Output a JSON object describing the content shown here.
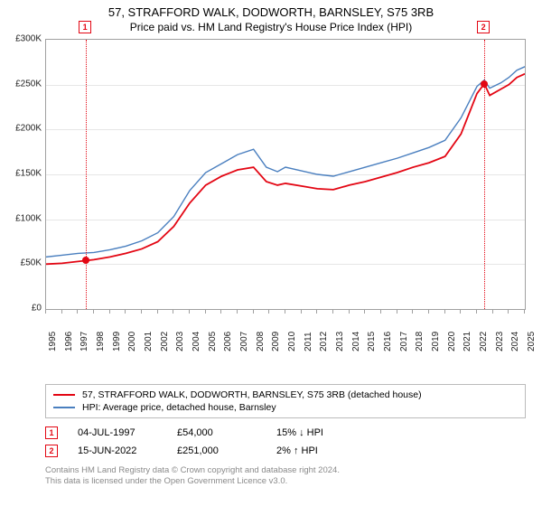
{
  "title": "57, STRAFFORD WALK, DODWORTH, BARNSLEY, S75 3RB",
  "subtitle": "Price paid vs. HM Land Registry's House Price Index (HPI)",
  "chart": {
    "type": "line",
    "background_color": "#ffffff",
    "grid_color": "#e6e6e6",
    "border_color": "#a0a0a0",
    "ylabel_prefix": "£",
    "ylim": [
      0,
      300000
    ],
    "ytick_step": 50000,
    "yticks": [
      "£0",
      "£50K",
      "£100K",
      "£150K",
      "£200K",
      "£250K",
      "£300K"
    ],
    "x_years": [
      1995,
      1996,
      1997,
      1998,
      1999,
      2000,
      2001,
      2002,
      2003,
      2004,
      2005,
      2006,
      2007,
      2008,
      2009,
      2010,
      2011,
      2012,
      2013,
      2014,
      2015,
      2016,
      2017,
      2018,
      2019,
      2020,
      2021,
      2022,
      2023,
      2024,
      2025
    ],
    "label_fontsize": 10,
    "series": [
      {
        "name": "price_paid",
        "label": "57, STRAFFORD WALK, DODWORTH, BARNSLEY, S75 3RB (detached house)",
        "color": "#e30613",
        "line_width": 1.8,
        "data": [
          [
            1995.0,
            50000
          ],
          [
            1996.0,
            51000
          ],
          [
            1997.5,
            54000
          ],
          [
            1998.0,
            55000
          ],
          [
            1999.0,
            58000
          ],
          [
            2000.0,
            62000
          ],
          [
            2001.0,
            67000
          ],
          [
            2002.0,
            75000
          ],
          [
            2003.0,
            92000
          ],
          [
            2004.0,
            118000
          ],
          [
            2005.0,
            138000
          ],
          [
            2006.0,
            148000
          ],
          [
            2007.0,
            155000
          ],
          [
            2008.0,
            158000
          ],
          [
            2008.8,
            142000
          ],
          [
            2009.5,
            138000
          ],
          [
            2010.0,
            140000
          ],
          [
            2011.0,
            137000
          ],
          [
            2012.0,
            134000
          ],
          [
            2013.0,
            133000
          ],
          [
            2014.0,
            138000
          ],
          [
            2015.0,
            142000
          ],
          [
            2016.0,
            147000
          ],
          [
            2017.0,
            152000
          ],
          [
            2018.0,
            158000
          ],
          [
            2019.0,
            163000
          ],
          [
            2020.0,
            170000
          ],
          [
            2021.0,
            195000
          ],
          [
            2022.0,
            240000
          ],
          [
            2022.46,
            251000
          ],
          [
            2022.8,
            238000
          ],
          [
            2023.5,
            245000
          ],
          [
            2024.0,
            250000
          ],
          [
            2024.5,
            258000
          ],
          [
            2025.0,
            262000
          ]
        ]
      },
      {
        "name": "hpi",
        "label": "HPI: Average price, detached house, Barnsley",
        "color": "#4a7fbf",
        "line_width": 1.4,
        "data": [
          [
            1995.0,
            58000
          ],
          [
            1996.0,
            60000
          ],
          [
            1997.0,
            62000
          ],
          [
            1998.0,
            63000
          ],
          [
            1999.0,
            66000
          ],
          [
            2000.0,
            70000
          ],
          [
            2001.0,
            76000
          ],
          [
            2002.0,
            85000
          ],
          [
            2003.0,
            103000
          ],
          [
            2004.0,
            132000
          ],
          [
            2005.0,
            152000
          ],
          [
            2006.0,
            162000
          ],
          [
            2007.0,
            172000
          ],
          [
            2008.0,
            178000
          ],
          [
            2008.8,
            158000
          ],
          [
            2009.5,
            153000
          ],
          [
            2010.0,
            158000
          ],
          [
            2011.0,
            154000
          ],
          [
            2012.0,
            150000
          ],
          [
            2013.0,
            148000
          ],
          [
            2014.0,
            153000
          ],
          [
            2015.0,
            158000
          ],
          [
            2016.0,
            163000
          ],
          [
            2017.0,
            168000
          ],
          [
            2018.0,
            174000
          ],
          [
            2019.0,
            180000
          ],
          [
            2020.0,
            188000
          ],
          [
            2021.0,
            213000
          ],
          [
            2022.0,
            248000
          ],
          [
            2022.46,
            255000
          ],
          [
            2022.8,
            246000
          ],
          [
            2023.5,
            252000
          ],
          [
            2024.0,
            258000
          ],
          [
            2024.5,
            266000
          ],
          [
            2025.0,
            270000
          ]
        ]
      }
    ],
    "markers": [
      {
        "num": "1",
        "x": 1997.5,
        "y": 54000,
        "color": "#e30613"
      },
      {
        "num": "2",
        "x": 2022.46,
        "y": 251000,
        "color": "#e30613"
      }
    ]
  },
  "legend": {
    "items": [
      {
        "color": "#e30613",
        "label": "57, STRAFFORD WALK, DODWORTH, BARNSLEY, S75 3RB (detached house)"
      },
      {
        "color": "#4a7fbf",
        "label": "HPI: Average price, detached house, Barnsley"
      }
    ]
  },
  "datapoints": [
    {
      "num": "1",
      "color": "#e30613",
      "date": "04-JUL-1997",
      "price": "£54,000",
      "delta": "15%",
      "dir": "↓",
      "suffix": "HPI"
    },
    {
      "num": "2",
      "color": "#e30613",
      "date": "15-JUN-2022",
      "price": "£251,000",
      "delta": "2%",
      "dir": "↑",
      "suffix": "HPI"
    }
  ],
  "footnote": {
    "line1": "Contains HM Land Registry data © Crown copyright and database right 2024.",
    "line2": "This data is licensed under the Open Government Licence v3.0."
  }
}
